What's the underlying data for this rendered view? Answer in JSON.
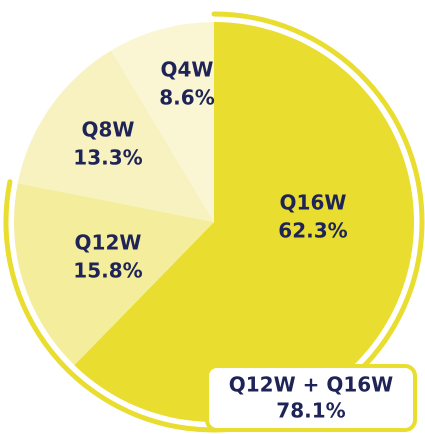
{
  "chart_data": {
    "type": "pie",
    "categories": [
      "Q16W",
      "Q12W",
      "Q8W",
      "Q4W"
    ],
    "values": [
      62.3,
      15.8,
      13.3,
      8.6
    ],
    "value_labels": [
      "62.3%",
      "15.8%",
      "13.3%",
      "8.6%"
    ],
    "colors": [
      "#e9dd2f",
      "#f4ed9c",
      "#f7f2bf",
      "#faf6d3"
    ],
    "annotation": {
      "label": "Q12W + Q16W",
      "value": 78.1,
      "value_label": "78.1%",
      "color": "#e9dd2f"
    }
  }
}
